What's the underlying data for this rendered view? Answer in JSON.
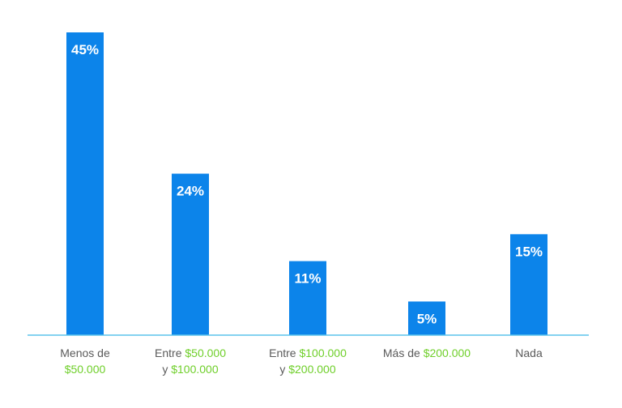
{
  "chart_data": {
    "type": "bar",
    "title": "",
    "xlabel": "",
    "ylabel": "",
    "ylim": [
      0,
      45
    ],
    "grid": false,
    "categories": [
      {
        "lines": [
          [
            {
              "text": "Menos de",
              "highlight": false
            }
          ],
          [
            {
              "text": "$50.000",
              "highlight": true
            }
          ]
        ]
      },
      {
        "lines": [
          [
            {
              "text": "Entre ",
              "highlight": false
            },
            {
              "text": "$50.000",
              "highlight": true
            }
          ],
          [
            {
              "text": "y ",
              "highlight": false
            },
            {
              "text": "$100.000",
              "highlight": true
            }
          ]
        ]
      },
      {
        "lines": [
          [
            {
              "text": "Entre ",
              "highlight": false
            },
            {
              "text": "$100.000",
              "highlight": true
            }
          ],
          [
            {
              "text": "y ",
              "highlight": false
            },
            {
              "text": "$200.000",
              "highlight": true
            }
          ]
        ]
      },
      {
        "lines": [
          [
            {
              "text": "Más de ",
              "highlight": false
            },
            {
              "text": "$200.000",
              "highlight": true
            }
          ]
        ]
      },
      {
        "lines": [
          [
            {
              "text": "Nada",
              "highlight": false
            }
          ]
        ]
      }
    ],
    "values": [
      45,
      24,
      11,
      5,
      15
    ],
    "data_labels": [
      "45%",
      "24%",
      "11%",
      "5%",
      "15%"
    ],
    "colors": {
      "bar": "#0c84ea",
      "baseline": "#5bc3ec",
      "data_label": "#ffffff",
      "category_text": "#5a5a5a",
      "highlight_text": "#6fcf2a"
    }
  }
}
